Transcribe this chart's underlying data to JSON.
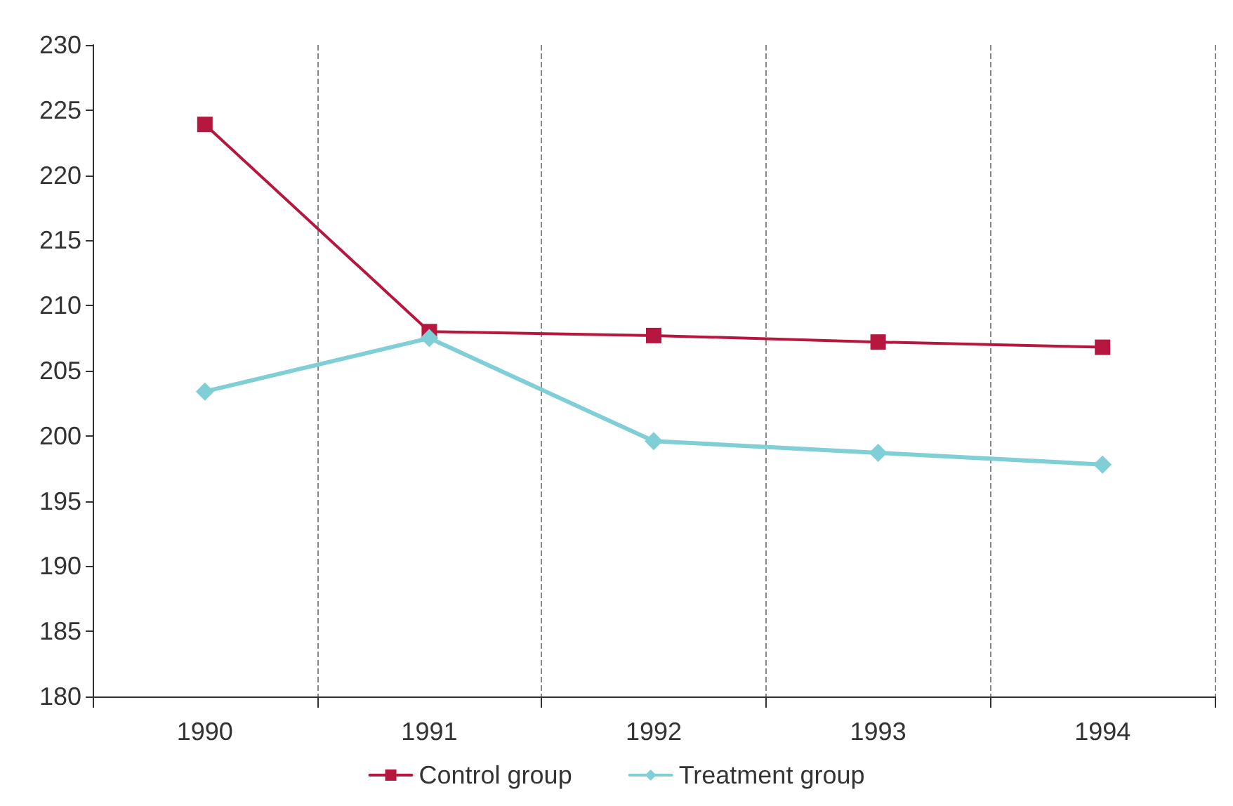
{
  "chart_data": {
    "type": "line",
    "categories": [
      "1990",
      "1991",
      "1992",
      "1993",
      "1994"
    ],
    "series": [
      {
        "name": "Control group",
        "color": "#b5173f",
        "marker": "square",
        "values": [
          223.9,
          208,
          207.7,
          207.2,
          206.8
        ]
      },
      {
        "name": "Treatment group",
        "color": "#80cfd6",
        "marker": "diamond",
        "values": [
          203.4,
          207.5,
          199.6,
          198.7,
          197.8
        ]
      }
    ],
    "ylim": [
      180,
      230
    ],
    "yticks": [
      180,
      185,
      190,
      195,
      200,
      205,
      210,
      215,
      220,
      225,
      230
    ],
    "grid": "x",
    "legend": "bottom"
  }
}
